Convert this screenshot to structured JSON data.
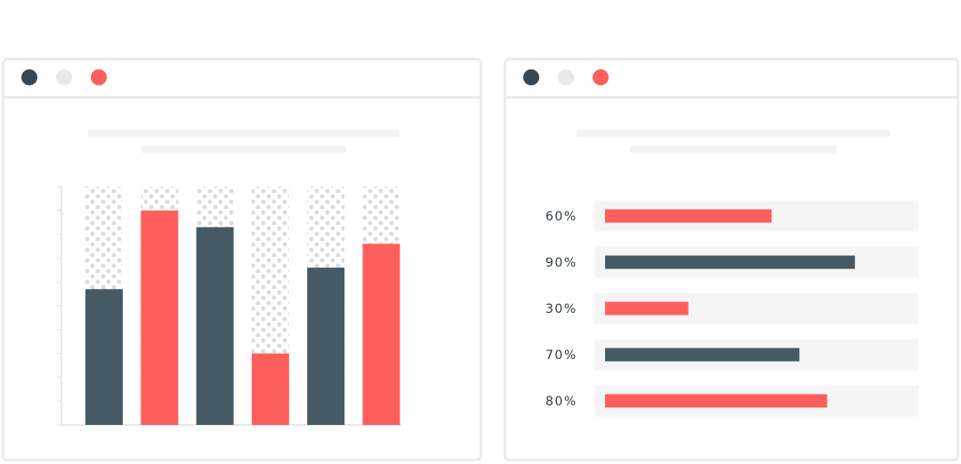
{
  "colors": {
    "dark": "#455a64",
    "accent": "#ff5f5c",
    "track": "#f5f5f5",
    "dot_pattern": "#dadada",
    "border": "#ececec",
    "window_dot_dark": "#37474f",
    "window_dot_light": "#e8e8e8",
    "window_dot_red": "#ff5f5c"
  },
  "chart_data": [
    {
      "type": "bar",
      "orientation": "vertical",
      "title": "",
      "xlabel": "",
      "ylabel": "",
      "categories": [
        "",
        "",
        "",
        "",
        "",
        ""
      ],
      "values": [
        57,
        90,
        83,
        30,
        66,
        76
      ],
      "bar_colors": [
        "dark",
        "accent",
        "dark",
        "accent",
        "dark",
        "accent"
      ],
      "ylim": [
        0,
        100
      ],
      "grid": false,
      "background_pattern": "dotted"
    },
    {
      "type": "bar",
      "orientation": "horizontal",
      "title": "",
      "xlabel": "",
      "ylabel": "",
      "categories": [
        "60%",
        "90%",
        "30%",
        "70%",
        "80%"
      ],
      "values": [
        60,
        90,
        30,
        70,
        80
      ],
      "bar_colors": [
        "accent",
        "dark",
        "accent",
        "dark",
        "accent"
      ],
      "xlim": [
        0,
        100
      ],
      "grid": false
    }
  ]
}
